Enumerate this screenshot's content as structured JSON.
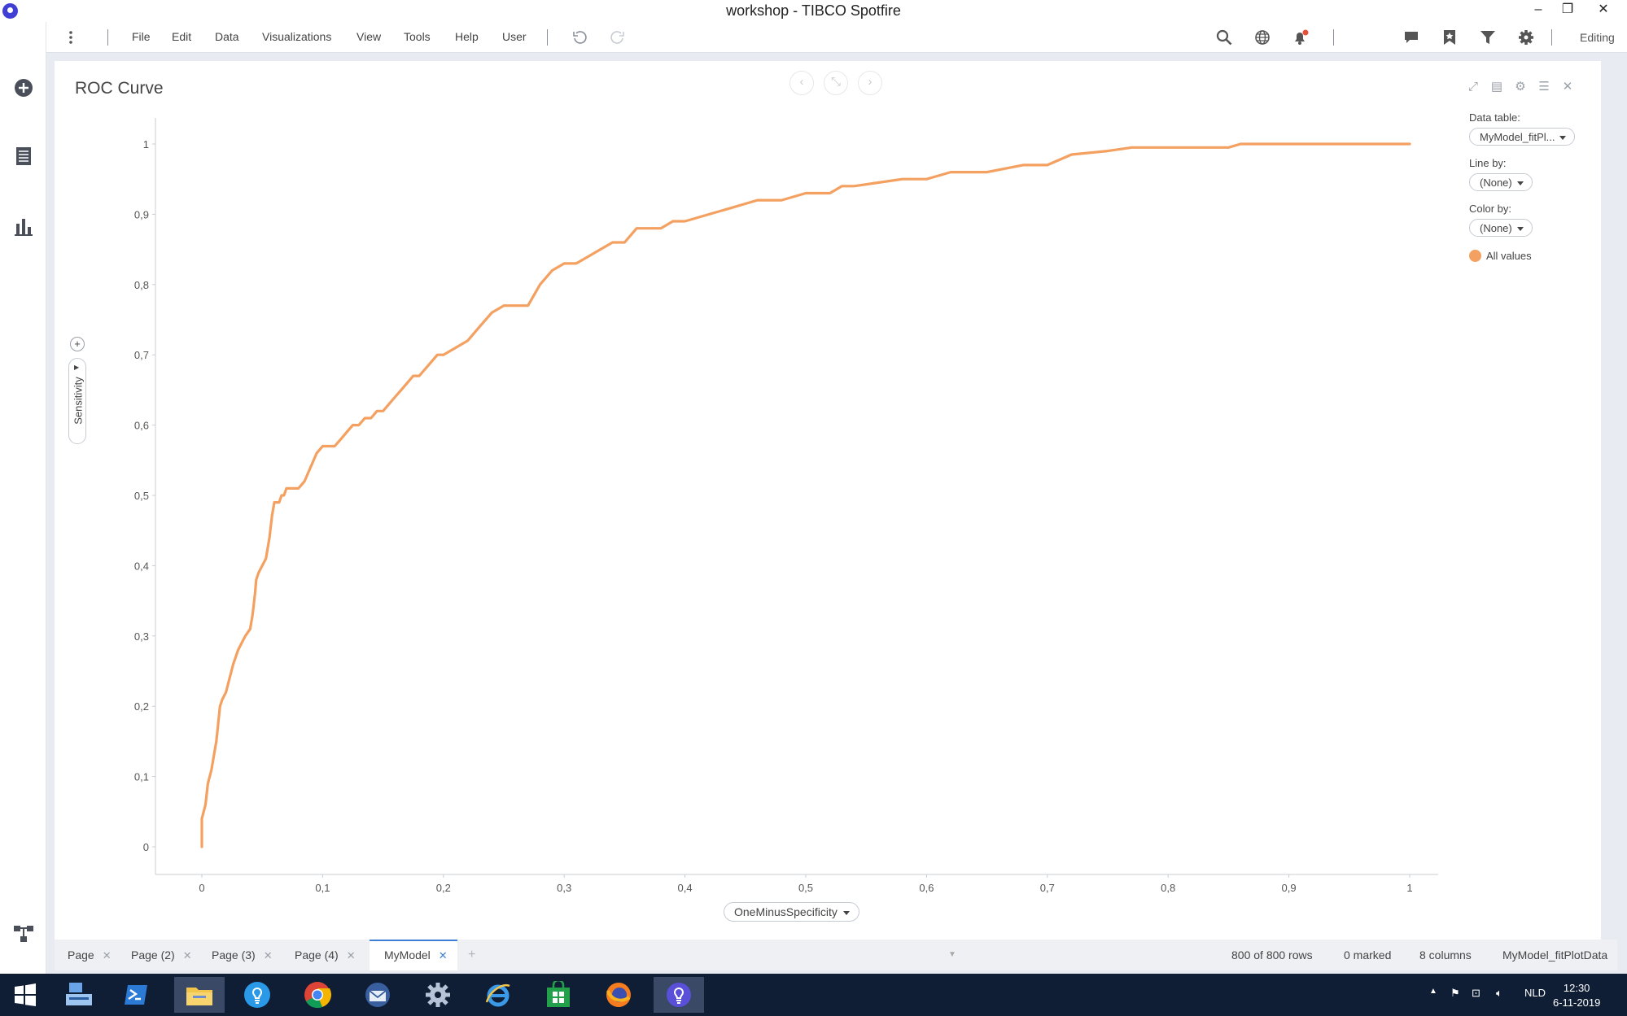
{
  "window": {
    "title": "workshop - TIBCO Spotfire",
    "minimize": "–",
    "restore": "❐",
    "close": "✕"
  },
  "menu": {
    "items": [
      "File",
      "Edit",
      "Data",
      "Visualizations",
      "View",
      "Tools",
      "Help",
      "User"
    ],
    "mode": "Editing"
  },
  "visualization": {
    "title": "ROC Curve",
    "data_table_label": "Data table:",
    "data_table_value": "MyModel_fitPl...",
    "line_by_label": "Line by:",
    "line_by_value": "(None)",
    "color_by_label": "Color by:",
    "color_by_value": "(None)",
    "legend_entry": "All values",
    "y_axis": "Sensitivity",
    "x_axis": "OneMinusSpecificity"
  },
  "chart_data": {
    "type": "line",
    "title": "ROC Curve",
    "xlabel": "OneMinusSpecificity",
    "ylabel": "Sensitivity",
    "xlim": [
      0,
      1
    ],
    "ylim": [
      0,
      1
    ],
    "x_ticks": [
      "0",
      "0,1",
      "0,2",
      "0,3",
      "0,4",
      "0,5",
      "0,6",
      "0,7",
      "0,8",
      "0,9",
      "1"
    ],
    "y_ticks": [
      "0",
      "0,1",
      "0,2",
      "0,3",
      "0,4",
      "0,5",
      "0,6",
      "0,7",
      "0,8",
      "0,9",
      "1"
    ],
    "grid": false,
    "legend": "right",
    "series": [
      {
        "name": "All values",
        "color": "#f4a060",
        "x": [
          0,
          0,
          0.003,
          0.005,
          0.008,
          0.01,
          0.012,
          0.015,
          0.017,
          0.02,
          0.023,
          0.026,
          0.028,
          0.03,
          0.033,
          0.036,
          0.04,
          0.042,
          0.044,
          0.045,
          0.047,
          0.05,
          0.053,
          0.056,
          0.058,
          0.06,
          0.062,
          0.064,
          0.066,
          0.068,
          0.07,
          0.075,
          0.08,
          0.085,
          0.09,
          0.095,
          0.1,
          0.105,
          0.11,
          0.115,
          0.12,
          0.125,
          0.13,
          0.135,
          0.14,
          0.145,
          0.15,
          0.155,
          0.16,
          0.165,
          0.17,
          0.175,
          0.18,
          0.185,
          0.19,
          0.195,
          0.2,
          0.21,
          0.22,
          0.23,
          0.24,
          0.25,
          0.26,
          0.27,
          0.28,
          0.29,
          0.3,
          0.31,
          0.32,
          0.33,
          0.34,
          0.35,
          0.36,
          0.37,
          0.38,
          0.39,
          0.4,
          0.42,
          0.44,
          0.46,
          0.48,
          0.5,
          0.52,
          0.53,
          0.54,
          0.56,
          0.58,
          0.6,
          0.62,
          0.65,
          0.68,
          0.7,
          0.72,
          0.75,
          0.77,
          0.8,
          0.85,
          0.86,
          0.9,
          1
        ],
        "y": [
          0,
          0.04,
          0.06,
          0.09,
          0.11,
          0.13,
          0.15,
          0.2,
          0.21,
          0.22,
          0.24,
          0.26,
          0.27,
          0.28,
          0.29,
          0.3,
          0.31,
          0.33,
          0.36,
          0.38,
          0.39,
          0.4,
          0.41,
          0.44,
          0.47,
          0.49,
          0.49,
          0.49,
          0.5,
          0.5,
          0.51,
          0.51,
          0.51,
          0.52,
          0.54,
          0.56,
          0.57,
          0.57,
          0.57,
          0.58,
          0.59,
          0.6,
          0.6,
          0.61,
          0.61,
          0.62,
          0.62,
          0.63,
          0.64,
          0.65,
          0.66,
          0.67,
          0.67,
          0.68,
          0.69,
          0.7,
          0.7,
          0.71,
          0.72,
          0.74,
          0.76,
          0.77,
          0.77,
          0.77,
          0.8,
          0.82,
          0.83,
          0.83,
          0.84,
          0.85,
          0.86,
          0.86,
          0.88,
          0.88,
          0.88,
          0.89,
          0.89,
          0.9,
          0.91,
          0.92,
          0.92,
          0.93,
          0.93,
          0.94,
          0.94,
          0.945,
          0.95,
          0.95,
          0.96,
          0.96,
          0.97,
          0.97,
          0.985,
          0.99,
          0.995,
          0.995,
          0.995,
          1,
          1,
          1
        ]
      }
    ]
  },
  "pages": [
    {
      "label": "Page",
      "active": false
    },
    {
      "label": "Page (2)",
      "active": false
    },
    {
      "label": "Page (3)",
      "active": false
    },
    {
      "label": "Page (4)",
      "active": false
    },
    {
      "label": "MyModel",
      "active": true
    }
  ],
  "status": {
    "rows": "800 of 800 rows",
    "marked": "0 marked",
    "columns": "8 columns",
    "table": "MyModel_fitPlotData"
  },
  "tray": {
    "language": "NLD",
    "time": "12:30",
    "date": "6-11-2019"
  },
  "colors": {
    "accent": "#3f7fd6",
    "line": "#f4a060",
    "taskbar": "#0f1d35"
  }
}
